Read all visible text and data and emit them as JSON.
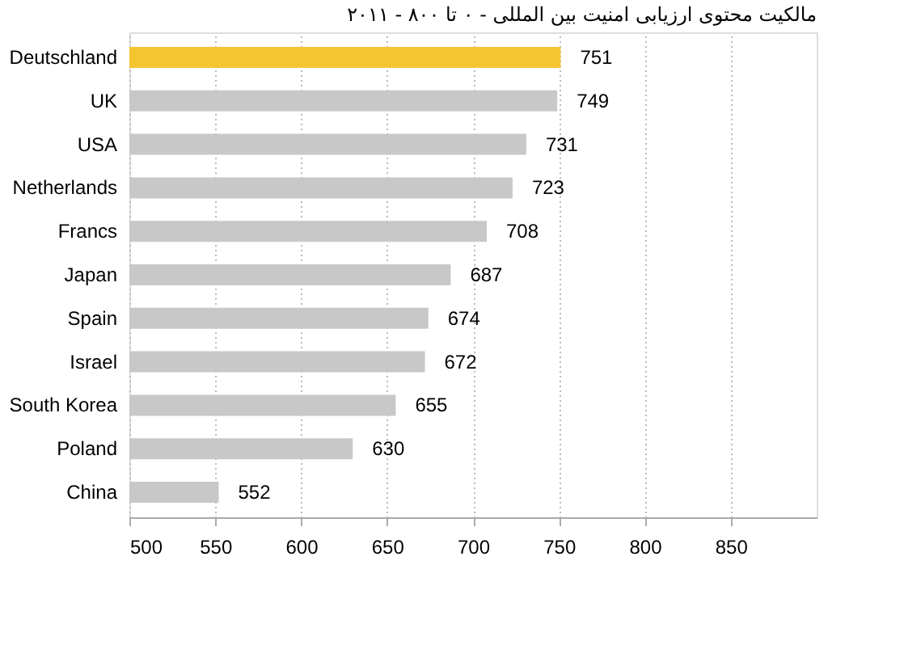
{
  "chart_data": {
    "type": "bar",
    "orientation": "horizontal",
    "title": "مالکیت محتوی ارزیابی امنیت بین المللی - ۰ تا ۸۰۰ - ۲۰۱۱",
    "categories": [
      "Deutschland",
      "UK",
      "USA",
      "Netherlands",
      "Francs",
      "Japan",
      "Spain",
      "Israel",
      "South Korea",
      "Poland",
      "China"
    ],
    "values": [
      751,
      749,
      731,
      723,
      708,
      687,
      674,
      672,
      655,
      630,
      552
    ],
    "colors": [
      "#f5c431",
      "#c8c8c8",
      "#c8c8c8",
      "#c8c8c8",
      "#c8c8c8",
      "#c8c8c8",
      "#c8c8c8",
      "#c8c8c8",
      "#c8c8c8",
      "#c8c8c8",
      "#c8c8c8"
    ],
    "xlim": [
      500,
      900
    ],
    "xticks": [
      500,
      550,
      600,
      650,
      700,
      750,
      800,
      850
    ],
    "grid": "x",
    "data_labels": true
  }
}
